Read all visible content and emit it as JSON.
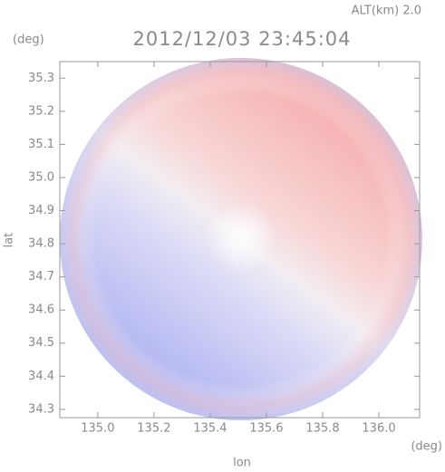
{
  "chart_data": {
    "type": "radar-ppi",
    "title": "2012/12/03 23:45:04",
    "subtitle": "ALT(km) 2.0",
    "x_label": "lon",
    "y_label": "lat",
    "x_unit": "(deg)",
    "y_unit": "(deg)",
    "xlim": [
      134.865,
      136.145
    ],
    "ylim": [
      34.275,
      35.35
    ],
    "xticks": [
      {
        "value": 135,
        "label": "135.0"
      },
      135.2,
      135.4,
      135.6,
      135.8,
      {
        "value": 136,
        "label": "136.0"
      }
    ],
    "yticks": [
      34.3,
      34.4,
      34.5,
      34.6,
      34.7,
      34.8,
      34.9,
      {
        "value": 35,
        "label": "35.0"
      },
      35.1,
      35.2,
      35.3
    ],
    "frame_color": "#999999"
  }
}
